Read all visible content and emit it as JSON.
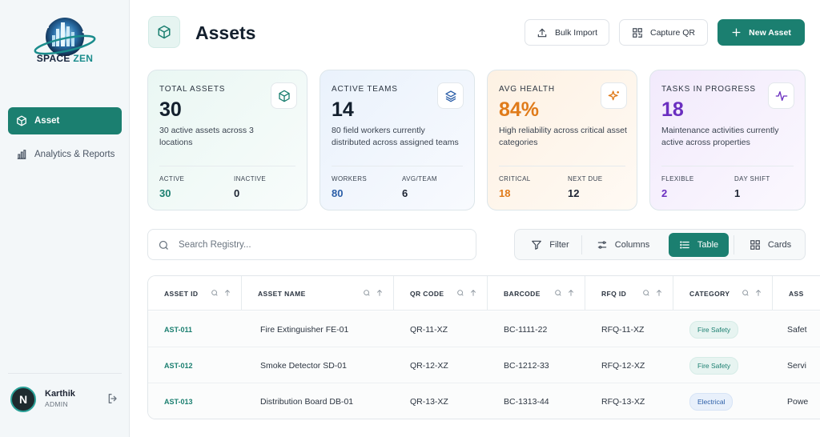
{
  "brand": {
    "name_part1": "SPACE",
    "name_part2": "ZEN"
  },
  "sidebar": {
    "items": [
      {
        "label": "Asset",
        "icon": "cube-icon",
        "active": true
      },
      {
        "label": "Analytics & Reports",
        "icon": "bar-chart-icon",
        "active": false
      }
    ],
    "user": {
      "initial": "N",
      "name": "Karthik",
      "role": "ADMIN"
    }
  },
  "header": {
    "title": "Assets",
    "bulk_import_label": "Bulk Import",
    "capture_qr_label": "Capture QR",
    "new_asset_label": "New Asset"
  },
  "stats": [
    {
      "label": "TOTAL ASSETS",
      "value": "30",
      "description": "30 active assets across 3 locations",
      "icon": "cube-icon",
      "sub": [
        {
          "label": "ACTIVE",
          "value": "30",
          "color": "#1b7f70"
        },
        {
          "label": "INACTIVE",
          "value": "0",
          "color": "#1d2433"
        }
      ]
    },
    {
      "label": "ACTIVE TEAMS",
      "value": "14",
      "description": "80 field workers currently distributed across assigned teams",
      "icon": "layers-icon",
      "sub": [
        {
          "label": "WORKERS",
          "value": "80",
          "color": "#2b5ea8"
        },
        {
          "label": "AVG/TEAM",
          "value": "6",
          "color": "#1d2433"
        }
      ]
    },
    {
      "label": "AVG HEALTH",
      "value": "84%",
      "description": "High reliability across critical asset categories",
      "icon": "sparkle-icon",
      "sub": [
        {
          "label": "CRITICAL",
          "value": "18",
          "color": "#e07b1a"
        },
        {
          "label": "NEXT DUE",
          "value": "12",
          "color": "#1d2433"
        }
      ]
    },
    {
      "label": "TASKS IN PROGRESS",
      "value": "18",
      "description": "Maintenance activities currently active across properties",
      "icon": "pulse-icon",
      "sub": [
        {
          "label": "FLEXIBLE",
          "value": "2",
          "color": "#6b2fc0"
        },
        {
          "label": "DAY SHIFT",
          "value": "1",
          "color": "#1d2433"
        }
      ]
    }
  ],
  "search": {
    "placeholder": "Search Registry..."
  },
  "view": {
    "filter_label": "Filter",
    "columns_label": "Columns",
    "table_label": "Table",
    "cards_label": "Cards",
    "active": "Table"
  },
  "table": {
    "columns": [
      "ASSET ID",
      "ASSET NAME",
      "QR CODE",
      "BARCODE",
      "RFQ ID",
      "CATEGORY",
      "ASS"
    ],
    "rows": [
      {
        "asset_id": "AST-011",
        "asset_name": "Fire Extinguisher FE-01",
        "qr_code": "QR-11-XZ",
        "barcode": "BC-1111-22",
        "rfq_id": "RFQ-11-XZ",
        "category": "Fire Safety",
        "extra": "Safet"
      },
      {
        "asset_id": "AST-012",
        "asset_name": "Smoke Detector SD-01",
        "qr_code": "QR-12-XZ",
        "barcode": "BC-1212-33",
        "rfq_id": "RFQ-12-XZ",
        "category": "Fire Safety",
        "extra": "Servi"
      },
      {
        "asset_id": "AST-013",
        "asset_name": "Distribution Board DB-01",
        "qr_code": "QR-13-XZ",
        "barcode": "BC-1313-44",
        "rfq_id": "RFQ-13-XZ",
        "category": "Electrical",
        "extra": "Powe"
      }
    ]
  },
  "colors": {
    "accent": "#1b7f70",
    "health": "#e07b1a",
    "tasks": "#6b2fc0",
    "teams": "#2b5ea8"
  }
}
